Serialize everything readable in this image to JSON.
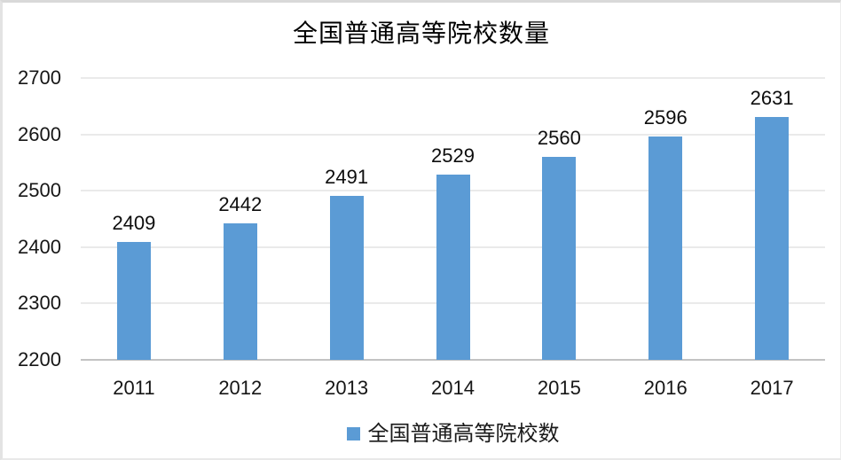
{
  "chart_data": {
    "type": "bar",
    "title": "全国普通高等院校数量",
    "categories": [
      "2011",
      "2012",
      "2013",
      "2014",
      "2015",
      "2016",
      "2017"
    ],
    "values": [
      2409,
      2442,
      2491,
      2529,
      2560,
      2596,
      2631
    ],
    "series_name": "全国普通高等院校数",
    "xlabel": "",
    "ylabel": "",
    "ylim": [
      2200,
      2700
    ],
    "yticks": [
      2700,
      2600,
      2500,
      2400,
      2300,
      2200
    ],
    "grid": true,
    "legend_position": "bottom",
    "bar_color": "#5B9BD5",
    "gridline_color": "#D6D6D6",
    "axis_line_color": "#C3C3C3",
    "label_color": "#0D0D0D"
  },
  "legend": {
    "label": "全国普通高等院校数",
    "swatch_color": "#5B9BD5"
  }
}
